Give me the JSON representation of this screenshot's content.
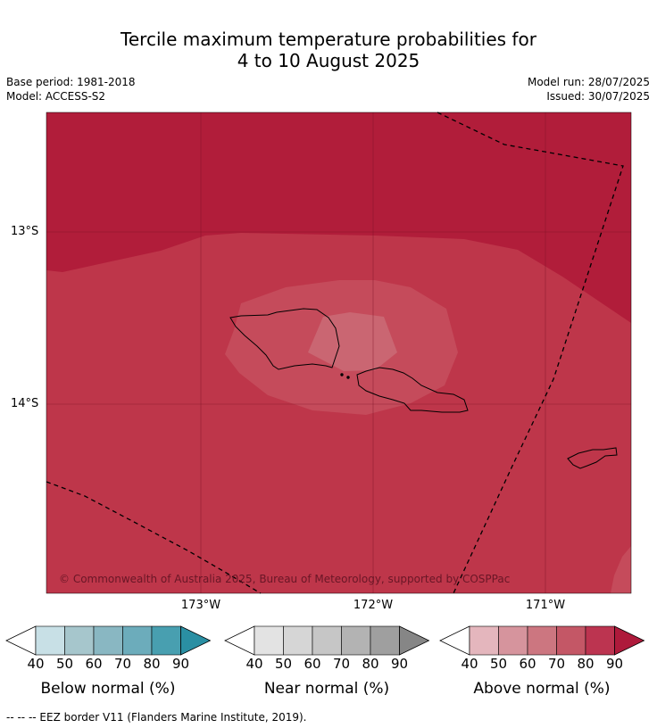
{
  "title": {
    "line1": "Tercile maximum temperature probabilities for",
    "line2": "4 to 10 August 2025"
  },
  "meta": {
    "base_period": "Base period: 1981-2018",
    "model": "Model: ACCESS-S2",
    "model_run": "Model run: 28/07/2025",
    "issued": "Issued: 30/07/2025"
  },
  "map": {
    "lat_labels": [
      "13°S",
      "14°S"
    ],
    "lon_labels": [
      "173°W",
      "172°W",
      "171°W"
    ],
    "copyright": "© Commonwealth of Australia 2025, Bureau of Meteorology, supported by COSPPac",
    "fill_colors": {
      "above_90": "#b11d3a",
      "above_80": "#be364a",
      "above_70": "#c54b5b",
      "above_60": "#ca6672"
    }
  },
  "colorbars": [
    {
      "name": "Below normal (%)",
      "ticks": [
        "40",
        "50",
        "60",
        "70",
        "80",
        "90"
      ],
      "colors": [
        "#c8e0e6",
        "#a6c6cc",
        "#89b7c2",
        "#6cacbb",
        "#489fb0",
        "#2a8fa3"
      ]
    },
    {
      "name": "Near normal (%)",
      "ticks": [
        "40",
        "50",
        "60",
        "70",
        "80",
        "90"
      ],
      "colors": [
        "#e3e3e3",
        "#d6d6d6",
        "#c6c6c6",
        "#b3b3b3",
        "#9f9f9f",
        "#868686"
      ]
    },
    {
      "name": "Above normal (%)",
      "ticks": [
        "40",
        "50",
        "60",
        "70",
        "80",
        "90"
      ],
      "colors": [
        "#e4b6bd",
        "#d6949d",
        "#cc7680",
        "#c45766",
        "#bc3450",
        "#ae1a3b"
      ]
    }
  ],
  "footnote": "--  --  -- EEZ border V11 (Flanders Marine Institute, 2019)."
}
